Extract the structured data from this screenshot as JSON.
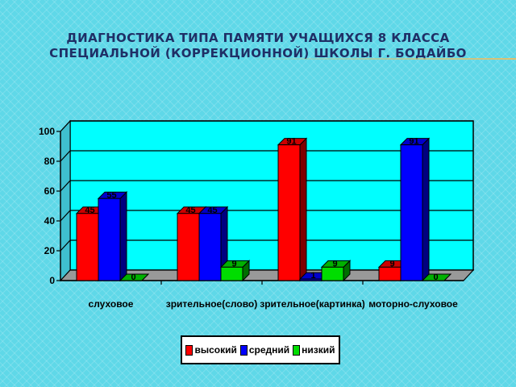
{
  "slide": {
    "title_line1": "ДИАГНОСТИКА ТИПА ПАМЯТИ УЧАЩИХСЯ 8 КЛАССА",
    "title_line2": "СПЕЦИАЛЬНОЙ (КОРРЕКЦИОННОЙ) ШКОЛЫ Г. БОДАЙБО"
  },
  "chart_data": {
    "type": "bar",
    "style": "3d-clustered",
    "categories": [
      "слуховое",
      "зрительное(слово)",
      "зрительное(картинка)",
      "моторно-слуховое"
    ],
    "series": [
      {
        "name": "высокий",
        "color": "#ff0000",
        "values": [
          45,
          45,
          91,
          9
        ]
      },
      {
        "name": "средний",
        "color": "#0000ff",
        "values": [
          55,
          45,
          1,
          91
        ]
      },
      {
        "name": "низкий",
        "color": "#00dd00",
        "values": [
          0,
          9,
          9,
          0
        ]
      }
    ],
    "y_ticks": [
      "0",
      "20",
      "40",
      "60",
      "80",
      "100"
    ],
    "ylim": [
      0,
      100
    ],
    "grid": true,
    "legend_position": "bottom",
    "plot_background": "#00ffff",
    "floor_color": "#999999"
  }
}
